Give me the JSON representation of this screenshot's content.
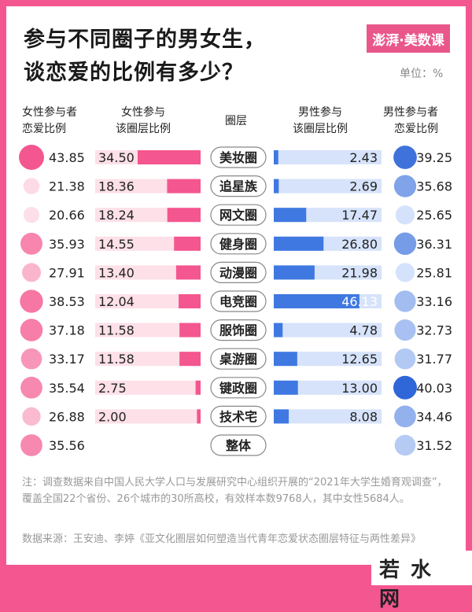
{
  "title": {
    "line1": "参与不同圈子的男女生，",
    "line2": "谈恋爱的比例有多少？"
  },
  "logo": "澎湃·美数课",
  "unit": "单位：%",
  "headers": {
    "female_rate": [
      "女性参与者",
      "恋爱比例"
    ],
    "female_share": [
      "女性参与",
      "该圈层比例"
    ],
    "circle": [
      "圈层"
    ],
    "male_share": [
      "男性参与",
      "该圈层比例"
    ],
    "male_rate": [
      "男性参与者",
      "恋爱比例"
    ]
  },
  "colors": {
    "female": "#f4568f",
    "female_light": "#fde0e8",
    "male": "#3f78e0",
    "male_light": "#d6e3fa"
  },
  "chart_data": {
    "type": "table",
    "categories": [
      "美妆圈",
      "追星族",
      "网文圈",
      "健身圈",
      "动漫圈",
      "电竞圈",
      "服饰圈",
      "桌游圈",
      "键政圈",
      "技术宅",
      "整体"
    ],
    "series": [
      {
        "name": "女性参与者恋爱比例",
        "values": [
          43.85,
          21.38,
          20.66,
          35.93,
          27.91,
          38.53,
          37.18,
          33.17,
          35.54,
          26.88,
          35.56
        ]
      },
      {
        "name": "女性参与该圈层比例",
        "values": [
          34.5,
          18.36,
          18.24,
          14.55,
          13.4,
          12.04,
          11.58,
          11.58,
          2.75,
          2.0,
          null
        ]
      },
      {
        "name": "男性参与该圈层比例",
        "values": [
          2.43,
          2.69,
          17.47,
          26.8,
          21.98,
          46.13,
          4.78,
          12.65,
          13.0,
          8.08,
          null
        ]
      },
      {
        "name": "男性参与者恋爱比例",
        "values": [
          39.25,
          35.68,
          25.65,
          36.31,
          25.81,
          33.16,
          32.73,
          31.77,
          40.03,
          34.46,
          31.52
        ]
      }
    ]
  },
  "notes": {
    "note": "注：调查数据来自中国人民大学人口与发展研究中心组织开展的“2021年大学生婚育观调查”，覆盖全国22个省份、26个城市的30所高校，有效样本数9768人，其中女性5684人。",
    "source": "数据来源：王安迪、李婷《亚文化圈层如何塑造当代青年恋爱状态圈层特征与两性差异》"
  },
  "watermark": "若水网"
}
